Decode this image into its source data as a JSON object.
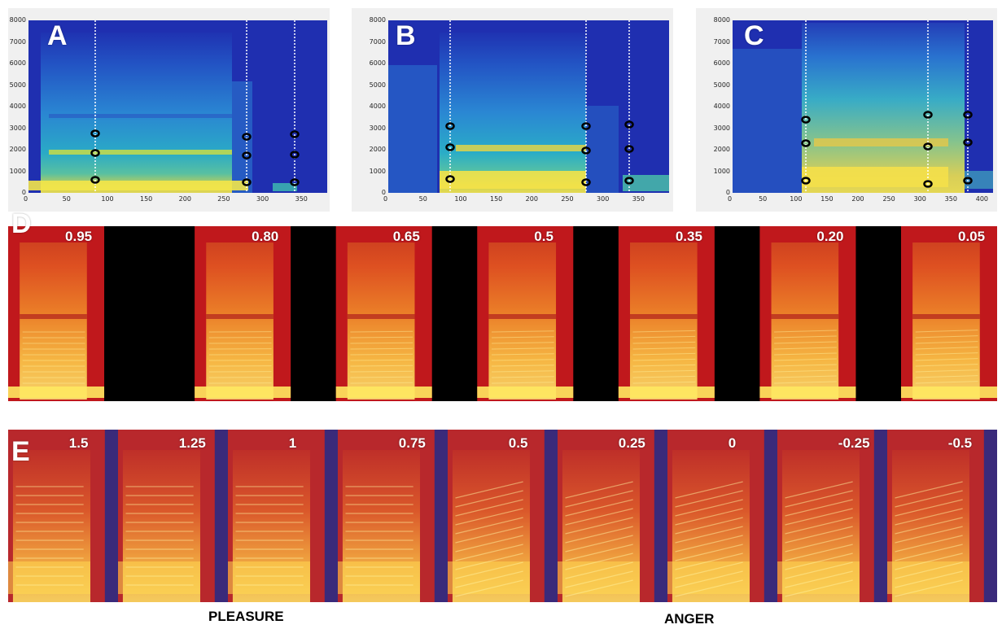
{
  "panel_letters": {
    "a": "A",
    "b": "B",
    "c": "C",
    "d": "D",
    "e": "E"
  },
  "top_panels": [
    {
      "key": "a",
      "y_ticks": [
        "8000",
        "7000",
        "6000",
        "5000",
        "4000",
        "3000",
        "2000",
        "1000",
        "0"
      ],
      "x_ticks": [
        "0",
        "50",
        "100",
        "150",
        "200",
        "250",
        "300",
        "350"
      ],
      "x_max": 385,
      "markers_x": [
        72,
        282,
        348
      ]
    },
    {
      "key": "b",
      "y_ticks": [
        "8000",
        "7000",
        "6000",
        "5000",
        "4000",
        "3000",
        "2000",
        "1000",
        "0"
      ],
      "x_ticks": [
        "0",
        "50",
        "100",
        "150",
        "200",
        "250",
        "300",
        "350"
      ],
      "x_max": 395,
      "markers_x": [
        92,
        296,
        360
      ]
    },
    {
      "key": "c",
      "y_ticks": [
        "8000",
        "7000",
        "6000",
        "5000",
        "4000",
        "3000",
        "2000",
        "1000",
        "0"
      ],
      "x_ticks": [
        "0",
        "50",
        "100",
        "150",
        "200",
        "250",
        "300",
        "350",
        "400"
      ],
      "x_max": 420,
      "markers_x": [
        112,
        310,
        373
      ]
    }
  ],
  "row_d": {
    "labels": [
      "0.95",
      "0.80",
      "0.65",
      "0.5",
      "0.35",
      "0.20",
      "0.05"
    ]
  },
  "row_e": {
    "labels": [
      "1.5",
      "1.25",
      "1",
      "0.75",
      "0.5",
      "0.25",
      "0",
      "-0.25",
      "-0.5"
    ]
  },
  "captions": {
    "pleasure": "PLEASURE",
    "anger": "ANGER"
  },
  "colors": {
    "jet_bg": "#1f2fb0",
    "hot_bg": "#c0181c",
    "hot_hi": "#ffe44a",
    "gap": "#000000",
    "purple_gap": "#3a2a7a"
  }
}
